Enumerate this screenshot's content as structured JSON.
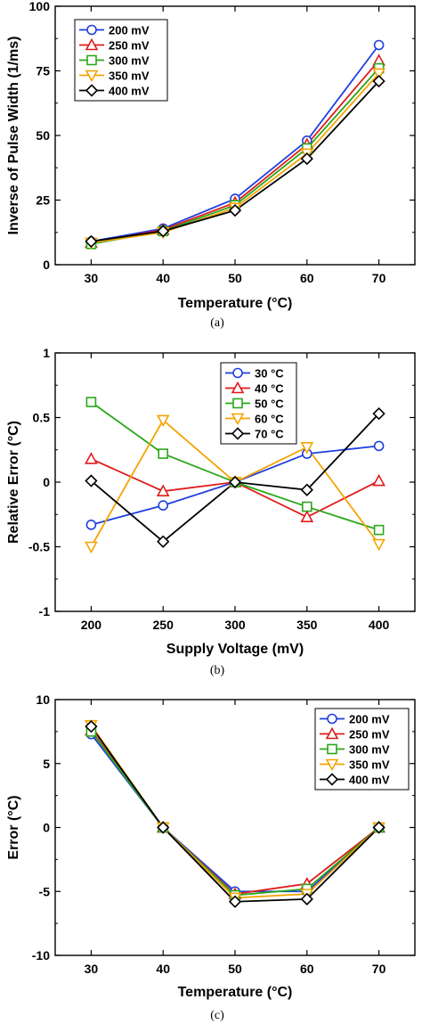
{
  "chart_data": [
    {
      "type": "line",
      "caption": "(a)",
      "xlabel": "Temperature (°C)",
      "ylabel": "Inverse of Pulse Width (1/ms)",
      "x": [
        30,
        40,
        50,
        60,
        70
      ],
      "xticks": [
        "30",
        "40",
        "50",
        "60",
        "70"
      ],
      "xlim": [
        25,
        75
      ],
      "ylim": [
        0,
        100
      ],
      "yticks": [
        "0",
        "25",
        "50",
        "75",
        "100"
      ],
      "grid": false,
      "legend_position": "top-left",
      "series": [
        {
          "name": "200 mV",
          "color": "#1f3fe0",
          "marker": "circle",
          "values": [
            9,
            14,
            25.5,
            48,
            85
          ]
        },
        {
          "name": "250 mV",
          "color": "#e01a1a",
          "marker": "triangle-up",
          "values": [
            8.5,
            13.5,
            24,
            46.5,
            79
          ]
        },
        {
          "name": "300 mV",
          "color": "#2aa81a",
          "marker": "square",
          "values": [
            8,
            13,
            23,
            45,
            76
          ]
        },
        {
          "name": "350 mV",
          "color": "#f5a300",
          "marker": "triangle-down",
          "values": [
            8.5,
            12.5,
            22,
            43,
            74
          ]
        },
        {
          "name": "400 mV",
          "color": "#000000",
          "marker": "diamond",
          "values": [
            9,
            13,
            21,
            41,
            71
          ]
        }
      ]
    },
    {
      "type": "line",
      "caption": "(b)",
      "xlabel": "Supply Voltage (mV)",
      "ylabel": "Relative Error (°C)",
      "x": [
        200,
        250,
        300,
        350,
        400
      ],
      "xticks": [
        "200",
        "250",
        "300",
        "350",
        "400"
      ],
      "xlim": [
        175,
        425
      ],
      "ylim": [
        -1,
        1
      ],
      "yticks": [
        "-1",
        "-0.5",
        "0",
        "0.5",
        "1"
      ],
      "grid": false,
      "legend_position": "top-center",
      "series": [
        {
          "name": "30 °C",
          "color": "#1f3fe0",
          "marker": "circle",
          "values": [
            -0.33,
            -0.18,
            0.0,
            0.22,
            0.28
          ]
        },
        {
          "name": "40 °C",
          "color": "#e01a1a",
          "marker": "triangle-up",
          "values": [
            0.18,
            -0.07,
            0.0,
            -0.27,
            0.01
          ]
        },
        {
          "name": "50 °C",
          "color": "#2aa81a",
          "marker": "square",
          "values": [
            0.62,
            0.22,
            0.0,
            -0.19,
            -0.37
          ]
        },
        {
          "name": "60 °C",
          "color": "#f5a300",
          "marker": "triangle-down",
          "values": [
            -0.5,
            0.48,
            0.0,
            0.27,
            -0.48
          ]
        },
        {
          "name": "70 °C",
          "color": "#000000",
          "marker": "diamond",
          "values": [
            0.01,
            -0.46,
            0.0,
            -0.06,
            0.53
          ]
        }
      ]
    },
    {
      "type": "line",
      "caption": "(c)",
      "xlabel": "Temperature (°C)",
      "ylabel": "Error (°C)",
      "x": [
        30,
        40,
        50,
        60,
        70
      ],
      "xticks": [
        "30",
        "40",
        "50",
        "60",
        "70"
      ],
      "xlim": [
        25,
        75
      ],
      "ylim": [
        -10,
        10
      ],
      "yticks": [
        "-10",
        "-5",
        "0",
        "5",
        "10"
      ],
      "grid": false,
      "legend_position": "top-right",
      "series": [
        {
          "name": "200 mV",
          "color": "#1f3fe0",
          "marker": "circle",
          "values": [
            7.3,
            0,
            -5.0,
            -5.0,
            0
          ]
        },
        {
          "name": "250 mV",
          "color": "#e01a1a",
          "marker": "triangle-up",
          "values": [
            7.6,
            0,
            -5.2,
            -4.4,
            0
          ]
        },
        {
          "name": "300 mV",
          "color": "#2aa81a",
          "marker": "square",
          "values": [
            7.5,
            0,
            -5.3,
            -4.8,
            0
          ]
        },
        {
          "name": "350 mV",
          "color": "#f5a300",
          "marker": "triangle-down",
          "values": [
            8.0,
            0,
            -5.5,
            -5.2,
            0
          ]
        },
        {
          "name": "400 mV",
          "color": "#000000",
          "marker": "diamond",
          "values": [
            7.9,
            0,
            -5.8,
            -5.6,
            0
          ]
        }
      ]
    }
  ]
}
